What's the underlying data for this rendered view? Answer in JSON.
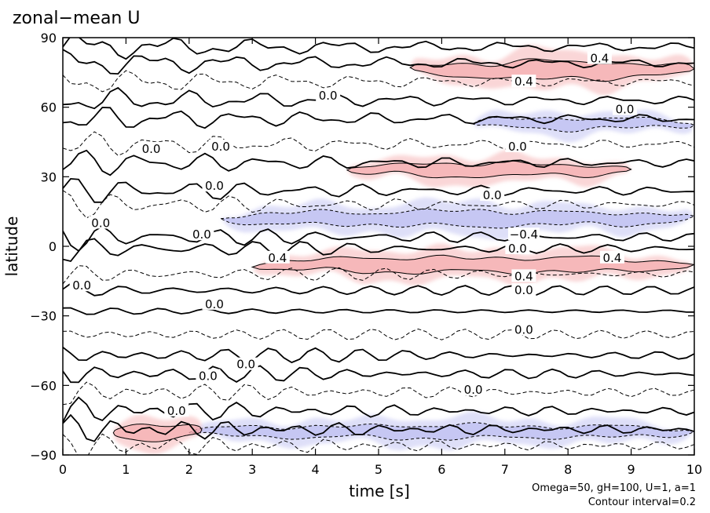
{
  "chart_data": {
    "type": "contour",
    "title": "zonal−mean U",
    "xlabel": "time [s]",
    "ylabel": "latitude",
    "xlim": [
      0,
      10
    ],
    "ylim": [
      -90,
      90
    ],
    "x_ticks": [
      0,
      1,
      2,
      3,
      4,
      5,
      6,
      7,
      8,
      9,
      10
    ],
    "y_ticks": [
      90,
      60,
      30,
      0,
      -30,
      -60,
      -90
    ],
    "y_tick_labels": [
      "90",
      "60",
      "30",
      "0",
      "−30",
      "−60",
      "−90"
    ],
    "contour_interval": 0.2,
    "contour_labels": [
      "0.0",
      "0.4",
      "−0.4"
    ],
    "positive_color": "#f4a3a6",
    "negative_color": "#b6b8f0",
    "footer": {
      "params": "Omega=50, gH=100, U=1, a=1",
      "interval": "Contour interval=0.2"
    },
    "features": [
      {
        "type": "jet",
        "sign": "positive",
        "t": [
          3.0,
          10.0
        ],
        "lat_center": -8,
        "peak": 0.6
      },
      {
        "type": "jet",
        "sign": "negative",
        "t": [
          2.5,
          10.0
        ],
        "lat_center": 12,
        "peak": -0.6
      },
      {
        "type": "jet",
        "sign": "positive",
        "t": [
          5.5,
          10.0
        ],
        "lat_center": 76,
        "peak": 0.8
      },
      {
        "type": "jet",
        "sign": "positive",
        "t": [
          4.5,
          9.0
        ],
        "lat_center": 33,
        "peak": 0.4
      },
      {
        "type": "jet",
        "sign": "negative",
        "t": [
          6.5,
          10.0
        ],
        "lat_center": 53,
        "peak": -0.2
      },
      {
        "type": "jet",
        "sign": "negative",
        "t": [
          2.0,
          10.0
        ],
        "lat_center": -80,
        "peak": -0.4
      },
      {
        "type": "jet",
        "sign": "positive",
        "t": [
          0.8,
          2.2
        ],
        "lat_center": -80,
        "peak": 0.6
      }
    ],
    "label_positions": [
      {
        "text": "0.4",
        "t": 8.5,
        "lat": 81
      },
      {
        "text": "0.4",
        "t": 7.3,
        "lat": 71
      },
      {
        "text": "0.0",
        "t": 4.2,
        "lat": 65
      },
      {
        "text": "0.0",
        "t": 8.9,
        "lat": 59
      },
      {
        "text": "0.0",
        "t": 1.4,
        "lat": 42
      },
      {
        "text": "0.0",
        "t": 2.5,
        "lat": 43
      },
      {
        "text": "0.0",
        "t": 7.2,
        "lat": 43
      },
      {
        "text": "0.0",
        "t": 2.4,
        "lat": 26
      },
      {
        "text": "0.0",
        "t": 6.8,
        "lat": 22
      },
      {
        "text": "0.0",
        "t": 0.6,
        "lat": 10
      },
      {
        "text": "0.0",
        "t": 2.2,
        "lat": 5
      },
      {
        "text": "−0.4",
        "t": 7.3,
        "lat": 5
      },
      {
        "text": "0.0",
        "t": 7.2,
        "lat": -1
      },
      {
        "text": "0.4",
        "t": 3.4,
        "lat": -5
      },
      {
        "text": "0.4",
        "t": 8.7,
        "lat": -5
      },
      {
        "text": "0.4",
        "t": 7.3,
        "lat": -13
      },
      {
        "text": "0.0",
        "t": 0.3,
        "lat": -17
      },
      {
        "text": "0.0",
        "t": 7.3,
        "lat": -19
      },
      {
        "text": "0.0",
        "t": 2.4,
        "lat": -25
      },
      {
        "text": "0.0",
        "t": 7.3,
        "lat": -36
      },
      {
        "text": "0.0",
        "t": 2.9,
        "lat": -51
      },
      {
        "text": "0.0",
        "t": 2.3,
        "lat": -56
      },
      {
        "text": "0.0",
        "t": 6.5,
        "lat": -62
      },
      {
        "text": "0.0",
        "t": 1.8,
        "lat": -71
      }
    ]
  }
}
